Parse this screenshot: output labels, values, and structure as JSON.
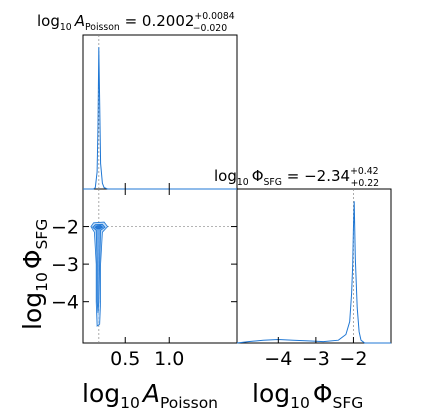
{
  "chart_data": [
    {
      "type": "line",
      "panel": "marginal-A",
      "title": {
        "prefix": "log",
        "sub10": "10",
        "var": "A",
        "varsub": "Poisson",
        "eq": " = 0.2002",
        "plus": "+0.0084",
        "minus": "−0.020"
      },
      "x_range": [
        0.02,
        1.77
      ],
      "truth": 0.2,
      "curve": {
        "x": [
          0.02,
          0.14,
          0.16,
          0.18,
          0.19,
          0.2,
          0.21,
          0.22,
          0.24,
          0.26,
          0.3,
          0.4,
          1.77
        ],
        "y": [
          0.0,
          0.0,
          0.01,
          0.12,
          0.45,
          1.0,
          0.6,
          0.18,
          0.04,
          0.01,
          0.0,
          0.0,
          0.0
        ]
      }
    },
    {
      "type": "line",
      "panel": "marginal-Phi",
      "title": {
        "prefix": "log",
        "sub10": "10",
        "var": "Φ",
        "varsub": "SFG",
        "eq": " = −2.34",
        "plus": "+0.42",
        "minus": "+0.22"
      },
      "x_range": [
        -5.1,
        -1.0
      ],
      "x_ticks": [
        -4,
        -3,
        -2
      ],
      "x_tick_labels": [
        "−4",
        "−3",
        "−2"
      ],
      "xlabel": {
        "prefix": "log",
        "sub10": "10",
        "var": "Φ",
        "varsub": "SFG"
      },
      "truth": -2.0,
      "curve": {
        "x": [
          -5.1,
          -4.8,
          -4.4,
          -4.0,
          -3.6,
          -3.2,
          -2.8,
          -2.4,
          -2.2,
          -2.1,
          -2.05,
          -2.02,
          -2.0,
          -1.98,
          -1.95,
          -1.9,
          -1.85,
          -1.8,
          -1.7,
          -1.0
        ],
        "y": [
          0.0,
          0.01,
          0.02,
          0.025,
          0.02,
          0.015,
          0.01,
          0.02,
          0.06,
          0.15,
          0.35,
          0.55,
          0.8,
          1.0,
          0.6,
          0.25,
          0.08,
          0.02,
          0.0,
          0.0
        ]
      }
    },
    {
      "type": "scatter",
      "panel": "joint",
      "x_range": [
        0.02,
        1.77
      ],
      "y_range": [
        -5.1,
        -1.0
      ],
      "x_ticks": [
        0.5,
        1.0
      ],
      "x_tick_labels": [
        "0.5",
        "1.0"
      ],
      "y_ticks": [
        -2,
        -3,
        -4
      ],
      "y_tick_labels": [
        "−2",
        "−3",
        "−4"
      ],
      "xlabel": {
        "prefix": "log",
        "sub10": "10",
        "var": "A",
        "varsub": "Poisson"
      },
      "ylabel": {
        "prefix": "log",
        "sub10": "10",
        "var": "Φ",
        "varsub": "SFG"
      },
      "truth_x": 0.2,
      "truth_y": -2.0,
      "contours": [
        {
          "level": "outer",
          "points": [
            [
              0.14,
              -1.9
            ],
            [
              0.26,
              -1.88
            ],
            [
              0.3,
              -2.0
            ],
            [
              0.24,
              -2.15
            ],
            [
              0.22,
              -3.0
            ],
            [
              0.22,
              -4.0
            ],
            [
              0.21,
              -4.6
            ],
            [
              0.18,
              -4.65
            ],
            [
              0.17,
              -4.0
            ],
            [
              0.17,
              -3.0
            ],
            [
              0.15,
              -2.15
            ],
            [
              0.11,
              -2.0
            ]
          ]
        },
        {
          "level": "mid",
          "points": [
            [
              0.16,
              -1.95
            ],
            [
              0.24,
              -1.94
            ],
            [
              0.27,
              -2.02
            ],
            [
              0.22,
              -2.1
            ],
            [
              0.21,
              -3.0
            ],
            [
              0.2,
              -4.0
            ],
            [
              0.19,
              -4.3
            ],
            [
              0.18,
              -4.0
            ],
            [
              0.18,
              -3.0
            ],
            [
              0.17,
              -2.1
            ],
            [
              0.13,
              -2.02
            ]
          ]
        },
        {
          "level": "inner",
          "points": [
            [
              0.18,
              -1.98
            ],
            [
              0.22,
              -1.97
            ],
            [
              0.24,
              -2.02
            ],
            [
              0.21,
              -2.06
            ],
            [
              0.18,
              -2.06
            ],
            [
              0.16,
              -2.02
            ]
          ]
        }
      ]
    }
  ],
  "colors": {
    "line": "#1f77d4",
    "fill_outer": "#a9cef5",
    "fill_mid": "#5b9ee8",
    "fill_inner": "#1f6fd0",
    "truth": "#888888"
  }
}
